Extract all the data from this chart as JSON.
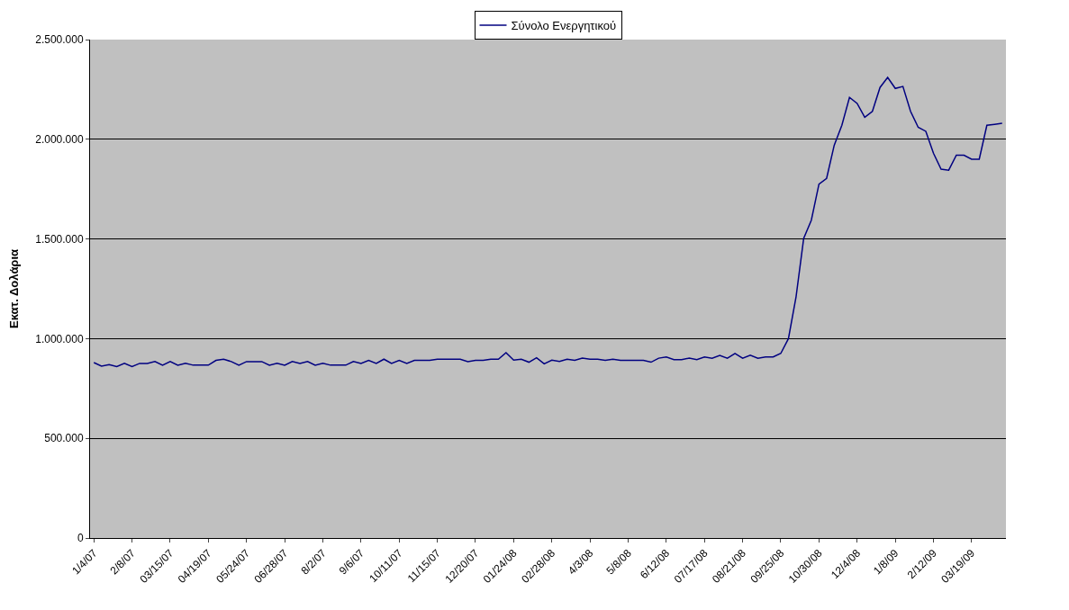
{
  "chart_data": {
    "type": "line",
    "ylabel": "Εκατ. Δολάρια",
    "categories": [
      "1/4/07",
      null,
      null,
      null,
      null,
      "2/8/07",
      null,
      null,
      null,
      null,
      "03/15/07",
      null,
      null,
      null,
      null,
      "04/19/07",
      null,
      null,
      null,
      null,
      "05/24/07",
      null,
      null,
      null,
      null,
      "06/28/07",
      null,
      null,
      null,
      null,
      "8/2/07",
      null,
      null,
      null,
      null,
      "9/6/07",
      null,
      null,
      null,
      null,
      "10/11/07",
      null,
      null,
      null,
      null,
      "11/15/07",
      null,
      null,
      null,
      null,
      "12/20/07",
      null,
      null,
      null,
      null,
      "01/24/08",
      null,
      null,
      null,
      null,
      "02/28/08",
      null,
      null,
      null,
      null,
      "4/3/08",
      null,
      null,
      null,
      null,
      "5/8/08",
      null,
      null,
      null,
      null,
      "6/12/08",
      null,
      null,
      null,
      null,
      "07/17/08",
      null,
      null,
      null,
      null,
      "08/21/08",
      null,
      null,
      null,
      null,
      "09/25/08",
      null,
      null,
      null,
      null,
      "10/30/08",
      null,
      null,
      null,
      null,
      "12/4/08",
      null,
      null,
      null,
      null,
      "1/8/09",
      null,
      null,
      null,
      null,
      "2/12/09",
      null,
      null,
      null,
      null,
      "03/19/09",
      null,
      null,
      null,
      null
    ],
    "series": [
      {
        "name": "Σύνολο Ενεργητικού",
        "color": "#000080",
        "values": [
          880000,
          862000,
          870000,
          860000,
          876000,
          860000,
          876000,
          876000,
          885000,
          867000,
          885000,
          867000,
          876000,
          867000,
          867000,
          867000,
          891000,
          897000,
          885000,
          867000,
          885000,
          885000,
          885000,
          867000,
          876000,
          867000,
          885000,
          876000,
          885000,
          867000,
          876000,
          867000,
          867000,
          867000,
          885000,
          876000,
          891000,
          876000,
          897000,
          876000,
          891000,
          876000,
          891000,
          891000,
          891000,
          897000,
          897000,
          897000,
          897000,
          885000,
          891000,
          891000,
          897000,
          897000,
          930000,
          892000,
          897000,
          882000,
          904000,
          874000,
          892000,
          886000,
          897000,
          891000,
          902000,
          897000,
          897000,
          891000,
          897000,
          891000,
          891000,
          891000,
          891000,
          882000,
          902000,
          908000,
          895000,
          895000,
          902000,
          895000,
          908000,
          902000,
          916000,
          902000,
          926000,
          902000,
          917000,
          902000,
          908000,
          908000,
          926000,
          1000000,
          1210000,
          1503000,
          1594000,
          1775000,
          1804000,
          1970000,
          2070000,
          2210000,
          2180000,
          2110000,
          2140000,
          2260000,
          2310000,
          2255000,
          2265000,
          2140000,
          2060000,
          2040000,
          1930000,
          1850000,
          1845000,
          1920000,
          1920000,
          1900000,
          1900000,
          2070000,
          2075000,
          2080000
        ]
      }
    ],
    "ylim": [
      0,
      2500000
    ],
    "yticks": [
      {
        "value": 0,
        "label": "0"
      },
      {
        "value": 500000,
        "label": "500.000"
      },
      {
        "value": 1000000,
        "label": "1.000.000"
      },
      {
        "value": 1500000,
        "label": "1.500.000"
      },
      {
        "value": 2000000,
        "label": "2.000.000"
      },
      {
        "value": 2500000,
        "label": "2.500.000"
      }
    ],
    "grid": "y",
    "legend": "top",
    "marker": "none",
    "line_style": "solid"
  }
}
